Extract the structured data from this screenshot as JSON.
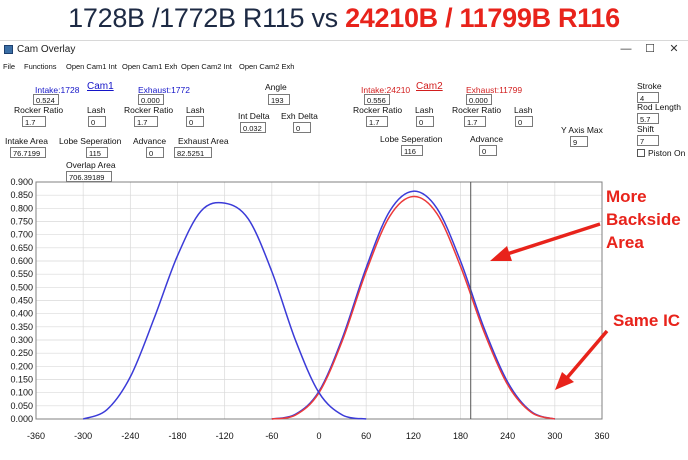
{
  "headline": {
    "part1": "1728B /1772B R115",
    "part2": " vs ",
    "part3": "24210B / 11799B R116"
  },
  "window": {
    "title": "Cam Overlay",
    "minimize": "—",
    "maximize": "☐",
    "close": "✕"
  },
  "menu": [
    "File",
    "Functions",
    "Open Cam1 Int",
    "Open Cam1 Exh",
    "Open Cam2 Int",
    "Open Cam2 Exh"
  ],
  "cam1": {
    "link": "Cam1",
    "intake_label": "Intake:1728",
    "intake_value": "0.524",
    "exhaust_label": "Exhaust:1772",
    "exhaust_value": "0.000",
    "rocker_label_1": "Rocker Ratio",
    "rocker_value_1": "1.7",
    "lash_label_1": "Lash",
    "lash_value_1": "0",
    "rocker_label_2": "Rocker Ratio",
    "rocker_value_2": "1.7",
    "lash_label_2": "Lash",
    "lash_value_2": "0",
    "intake_area_label": "Intake Area",
    "intake_area_value": "76.7199",
    "lobe_sep_label": "Lobe Seperation",
    "lobe_sep_value": "115",
    "advance_label": "Advance",
    "advance_value": "0",
    "exhaust_area_label": "Exhaust Area",
    "exhaust_area_value": "82.5251"
  },
  "center": {
    "angle_label": "Angle",
    "angle_value": "193",
    "int_delta_label": "Int Delta",
    "int_delta_value": "0.032",
    "exh_delta_label": "Exh Delta",
    "exh_delta_value": "0",
    "overlap_label": "Overlap Area",
    "overlap_value": "706.39189"
  },
  "cam2": {
    "link": "Cam2",
    "intake_label": "Intake:24210",
    "intake_value": "0.556",
    "exhaust_label": "Exhaust:11799",
    "exhaust_value": "0.000",
    "rocker_label_1": "Rocker Ratio",
    "rocker_value_1": "1.7",
    "lash_label_1": "Lash",
    "lash_value_1": "0",
    "rocker_label_2": "Rocker Ratio",
    "rocker_value_2": "1.7",
    "lash_label_2": "Lash",
    "lash_value_2": "0",
    "lobe_sep_label": "Lobe Seperation",
    "lobe_sep_value": "116",
    "advance_label": "Advance",
    "advance_value": "0"
  },
  "right_panel": {
    "y_axis_max_label": "Y Axis Max",
    "y_axis_max_value": "9",
    "stroke_label": "Stroke",
    "stroke_value": "4",
    "rod_length_label": "Rod Length",
    "rod_length_value": "5.7",
    "shift_label": "Shift",
    "shift_value": "7",
    "piston_on_label": "Piston On"
  },
  "annotations": {
    "more_backside_1": "More",
    "more_backside_2": "Backside",
    "more_backside_3": "Area",
    "same_ic": "Same IC"
  },
  "colors": {
    "cam1": "#3b3bd8",
    "cam2": "#ec3a3a",
    "annotation": "#e8231b",
    "grid": "#d9d9d9",
    "cursor": "#555555"
  },
  "chart_data": {
    "type": "line",
    "xlim": [
      -360,
      360
    ],
    "ylim": [
      0,
      0.9
    ],
    "x_ticks": [
      -360,
      -300,
      -240,
      -180,
      -120,
      -60,
      0,
      60,
      120,
      180,
      240,
      300,
      360
    ],
    "y_ticks": [
      "0.000",
      "0.050",
      "0.100",
      "0.150",
      "0.200",
      "0.250",
      "0.300",
      "0.350",
      "0.400",
      "0.450",
      "0.500",
      "0.550",
      "0.600",
      "0.650",
      "0.700",
      "0.750",
      "0.800",
      "0.850",
      "0.900"
    ],
    "grid": true,
    "cursor_x": 193,
    "series": [
      {
        "x": [
          -300,
          -270,
          -240,
          -210,
          -180,
          -150,
          -120,
          -90,
          -60,
          -30,
          0,
          30,
          60
        ],
        "y": [
          0.0,
          0.035,
          0.16,
          0.38,
          0.62,
          0.79,
          0.82,
          0.76,
          0.56,
          0.3,
          0.1,
          0.015,
          0.0
        ]
      },
      {
        "x": [
          -60,
          -30,
          0,
          30,
          60,
          90,
          120,
          150,
          180,
          210,
          240,
          270,
          300
        ],
        "y": [
          0.0,
          0.015,
          0.1,
          0.3,
          0.56,
          0.77,
          0.845,
          0.78,
          0.58,
          0.33,
          0.13,
          0.025,
          0.0
        ]
      },
      {
        "x": [
          -60,
          -30,
          0,
          30,
          60,
          90,
          120,
          150,
          180,
          210,
          240,
          270,
          300
        ],
        "y": [
          0.0,
          0.018,
          0.105,
          0.31,
          0.575,
          0.79,
          0.865,
          0.8,
          0.6,
          0.345,
          0.14,
          0.028,
          0.0
        ]
      }
    ]
  }
}
